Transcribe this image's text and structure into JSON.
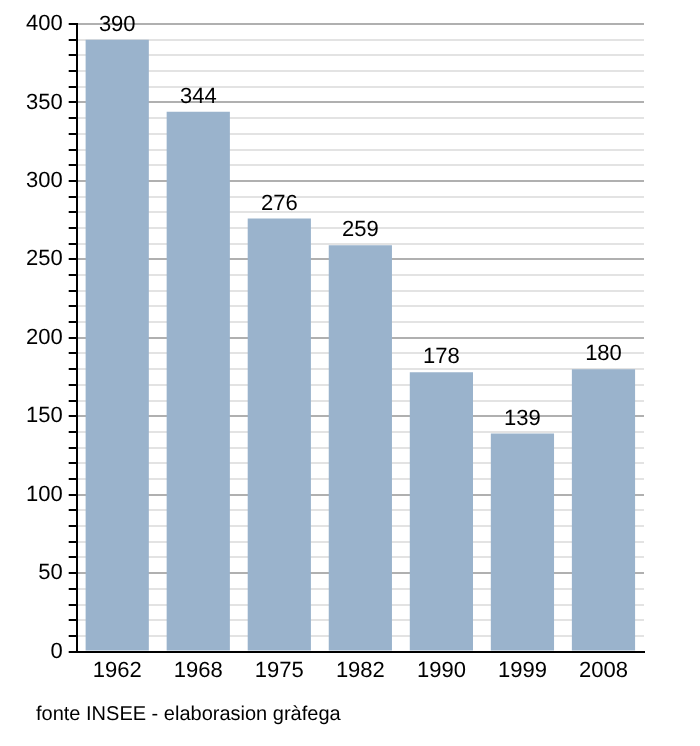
{
  "chart_data": {
    "type": "bar",
    "categories": [
      "1962",
      "1968",
      "1975",
      "1982",
      "1990",
      "1999",
      "2008"
    ],
    "values": [
      390,
      344,
      276,
      259,
      178,
      139,
      180
    ],
    "color": "#9ab3cc",
    "data_labels": true,
    "grid": "y",
    "legend": false,
    "ylim": [
      0,
      400
    ],
    "yticks": [
      0,
      {
        "value": 10,
        "label": null
      },
      {
        "value": 20,
        "label": null
      },
      {
        "value": 30,
        "label": null
      },
      {
        "value": 40,
        "label": null
      },
      50,
      {
        "value": 60,
        "label": null
      },
      {
        "value": 70,
        "label": null
      },
      {
        "value": 80,
        "label": null
      },
      {
        "value": 90,
        "label": null
      },
      100,
      {
        "value": 110,
        "label": null
      },
      {
        "value": 120,
        "label": null
      },
      {
        "value": 130,
        "label": null
      },
      {
        "value": 140,
        "label": null
      },
      150,
      {
        "value": 160,
        "label": null
      },
      {
        "value": 170,
        "label": null
      },
      {
        "value": 180,
        "label": null
      },
      {
        "value": 190,
        "label": null
      },
      200,
      {
        "value": 210,
        "label": null
      },
      {
        "value": 220,
        "label": null
      },
      {
        "value": 230,
        "label": null
      },
      {
        "value": 240,
        "label": null
      },
      250,
      {
        "value": 260,
        "label": null
      },
      {
        "value": 270,
        "label": null
      },
      {
        "value": 280,
        "label": null
      },
      {
        "value": 290,
        "label": null
      },
      300,
      {
        "value": 310,
        "label": null
      },
      {
        "value": 320,
        "label": null
      },
      {
        "value": 330,
        "label": null
      },
      {
        "value": 340,
        "label": null
      },
      350,
      {
        "value": 360,
        "label": null
      },
      {
        "value": 370,
        "label": null
      },
      {
        "value": 380,
        "label": null
      },
      {
        "value": 390,
        "label": null
      },
      400
    ],
    "annotations": [
      "fonte INSEE - elaborasion gràfega"
    ]
  }
}
